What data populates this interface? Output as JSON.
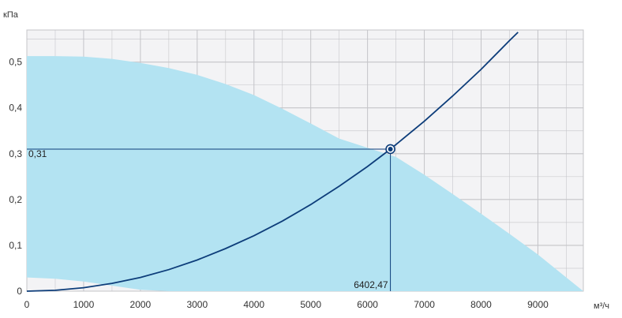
{
  "chart_data": {
    "type": "line",
    "y_unit_label": "кПа",
    "x_unit_label": "м³/ч",
    "xlim": [
      0,
      9800
    ],
    "ylim": [
      0,
      0.57
    ],
    "grid": true,
    "x_ticks": [
      "0",
      "1000",
      "2000",
      "3000",
      "4000",
      "5000",
      "6000",
      "7000",
      "8000",
      "9000"
    ],
    "y_ticks": [
      "0",
      "0,1",
      "0,2",
      "0,3",
      "0,4",
      "0,5"
    ],
    "x_tick_values": [
      0,
      1000,
      2000,
      3000,
      4000,
      5000,
      6000,
      7000,
      8000,
      9000
    ],
    "y_tick_values": [
      0,
      0.1,
      0.2,
      0.3,
      0.4,
      0.5
    ],
    "series": [
      {
        "kind": "area",
        "upper": {
          "x": [
            0,
            500,
            1000,
            1500,
            2000,
            2500,
            3000,
            3500,
            4000,
            4500,
            5000,
            5500,
            6000,
            6500,
            7000,
            7500,
            8000,
            8500,
            9000,
            9500,
            9800
          ],
          "y": [
            0.513,
            0.513,
            0.512,
            0.507,
            0.498,
            0.487,
            0.472,
            0.452,
            0.428,
            0.398,
            0.366,
            0.333,
            0.313,
            0.293,
            0.254,
            0.212,
            0.169,
            0.125,
            0.08,
            0.03,
            0.0
          ]
        },
        "lower": {
          "x": [
            0,
            500,
            1000,
            1500,
            2000,
            2500,
            9800
          ],
          "y": [
            0.03,
            0.027,
            0.021,
            0.012,
            0.003,
            0.0,
            0.0
          ]
        },
        "color": "#b3e3f2"
      },
      {
        "kind": "line",
        "x": [
          0,
          500,
          1000,
          1500,
          2000,
          2500,
          3000,
          3500,
          4000,
          4500,
          5000,
          5500,
          6000,
          6402.47,
          7000,
          7500,
          8000,
          8500,
          8650
        ],
        "y": [
          0,
          0.0019,
          0.0076,
          0.017,
          0.03,
          0.047,
          0.068,
          0.093,
          0.121,
          0.153,
          0.189,
          0.229,
          0.272,
          0.31,
          0.371,
          0.426,
          0.484,
          0.547,
          0.565
        ],
        "color": "#0d3d7a"
      }
    ],
    "operating_point": {
      "x": 6402.47,
      "y": 0.31,
      "x_label": "6402,47",
      "y_label": "0,31",
      "color": "#0d3d7a"
    }
  },
  "colors": {
    "plot_bg": "#f3f3f5",
    "grid": "#c4c4c8",
    "guide": "#0d3d7a"
  }
}
